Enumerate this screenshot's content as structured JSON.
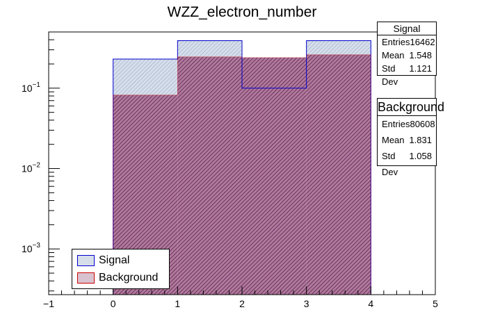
{
  "chart_data": {
    "type": "bar",
    "title": "WZZ_electron_number",
    "xlabel": "",
    "ylabel": "",
    "x_edges": [
      0,
      1,
      2,
      3,
      4
    ],
    "xlim": [
      -1,
      5
    ],
    "ylim": [
      0.00027,
      0.5
    ],
    "yscale": "log",
    "x_ticks": [
      "−1",
      "0",
      "1",
      "2",
      "3",
      "4",
      "5"
    ],
    "y_ticks": [
      {
        "value": 0.001,
        "base": "10",
        "exp": "−3"
      },
      {
        "value": 0.01,
        "base": "10",
        "exp": "−2"
      },
      {
        "value": 0.1,
        "base": "10",
        "exp": "−1"
      }
    ],
    "series": [
      {
        "name": "Signal",
        "values": [
          0.23,
          0.39,
          0.1,
          0.39
        ],
        "color": "#0000cc",
        "fill": "#a9b8d8"
      },
      {
        "name": "Background",
        "values": [
          0.082,
          0.245,
          0.24,
          0.26
        ],
        "color": "#cc0000",
        "fill": "#c9a4b8"
      }
    ],
    "legend": {
      "position": "bottom-left",
      "entries": [
        "Signal",
        "Background"
      ]
    },
    "grid": false
  },
  "stats": {
    "signal": {
      "title": "Signal",
      "entries_label": "Entries",
      "entries": "16462",
      "mean_label": "Mean",
      "mean": "1.548",
      "std_label": "Std Dev",
      "std": "1.121"
    },
    "background": {
      "title": "Background",
      "entries_label": "Entries",
      "entries": "80608",
      "mean_label": "Mean",
      "mean": "1.831",
      "std_label": "Std Dev",
      "std": "1.058"
    }
  }
}
